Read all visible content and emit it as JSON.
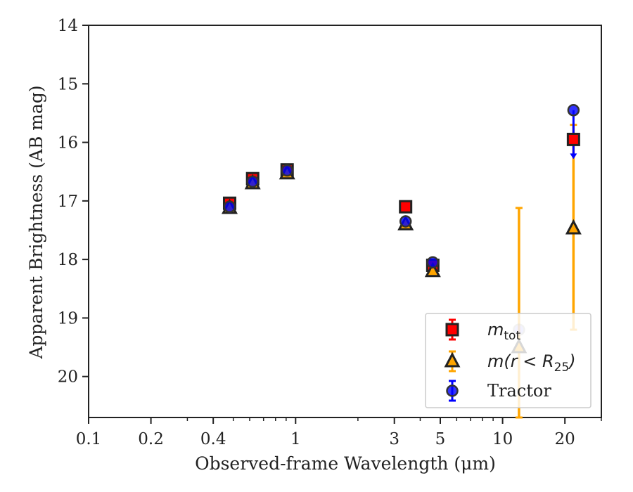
{
  "chart_data": {
    "type": "scatter",
    "xlabel": "Observed-frame Wavelength (μm)",
    "ylabel": "Apparent Brightness (AB mag)",
    "x_scale": "log",
    "xlim": [
      0.1,
      30
    ],
    "ylim": [
      20.7,
      14
    ],
    "y_inverted": true,
    "grid": false,
    "legend_position": "bottom-right",
    "x_ticks": [
      {
        "value": 0.1,
        "label": "0.1"
      },
      {
        "value": 0.2,
        "label": "0.2"
      },
      {
        "value": 0.4,
        "label": "0.4"
      },
      {
        "value": 1,
        "label": "1"
      },
      {
        "value": 3,
        "label": "3"
      },
      {
        "value": 5,
        "label": "5"
      },
      {
        "value": 10,
        "label": "10"
      },
      {
        "value": 20,
        "label": "20"
      }
    ],
    "y_ticks": [
      {
        "value": 14,
        "label": "14"
      },
      {
        "value": 15,
        "label": "15"
      },
      {
        "value": 16,
        "label": "16"
      },
      {
        "value": 17,
        "label": "17"
      },
      {
        "value": 18,
        "label": "18"
      },
      {
        "value": 19,
        "label": "19"
      },
      {
        "value": 20,
        "label": "20"
      }
    ],
    "series": [
      {
        "name": "m_tot",
        "marker": "square",
        "color": "#ff0000",
        "edge_color": "#222222",
        "points": [
          {
            "x": 0.48,
            "y": 17.04
          },
          {
            "x": 0.62,
            "y": 16.62
          },
          {
            "x": 0.91,
            "y": 16.47
          },
          {
            "x": 3.4,
            "y": 17.1
          },
          {
            "x": 4.6,
            "y": 18.1
          },
          {
            "x": 22,
            "y": 15.95
          }
        ]
      },
      {
        "name": "m(r<R_25)",
        "marker": "triangle",
        "color": "#ffa500",
        "edge_color": "#222222",
        "points": [
          {
            "x": 0.48,
            "y": 17.12
          },
          {
            "x": 0.62,
            "y": 16.7
          },
          {
            "x": 0.91,
            "y": 16.53
          },
          {
            "x": 3.4,
            "y": 17.4
          },
          {
            "x": 4.6,
            "y": 18.2
          },
          {
            "x": 12,
            "y": 19.5,
            "err_upper": 17.12,
            "err_lower": 20.7
          },
          {
            "x": 22,
            "y": 17.47,
            "err_upper": 15.7,
            "err_lower": 19.2
          }
        ]
      },
      {
        "name": "Tractor",
        "marker": "circle",
        "color": "#0000ff",
        "edge_color": "#333333",
        "points": [
          {
            "x": 0.48,
            "y": 17.1
          },
          {
            "x": 0.62,
            "y": 16.67
          },
          {
            "x": 0.91,
            "y": 16.48
          },
          {
            "x": 3.4,
            "y": 17.35
          },
          {
            "x": 4.6,
            "y": 18.05
          },
          {
            "x": 12,
            "y": 19.2,
            "faded": true
          },
          {
            "x": 22,
            "y": 15.45,
            "upper_limit_to": 16.25
          }
        ]
      }
    ],
    "legend": [
      {
        "series": 0,
        "base": "m",
        "sub": "tot",
        "tail": ""
      },
      {
        "series": 1,
        "base": "m(r < R",
        "sub": "25",
        "tail": ")"
      },
      {
        "series": 2,
        "plain": "Tractor"
      }
    ]
  }
}
